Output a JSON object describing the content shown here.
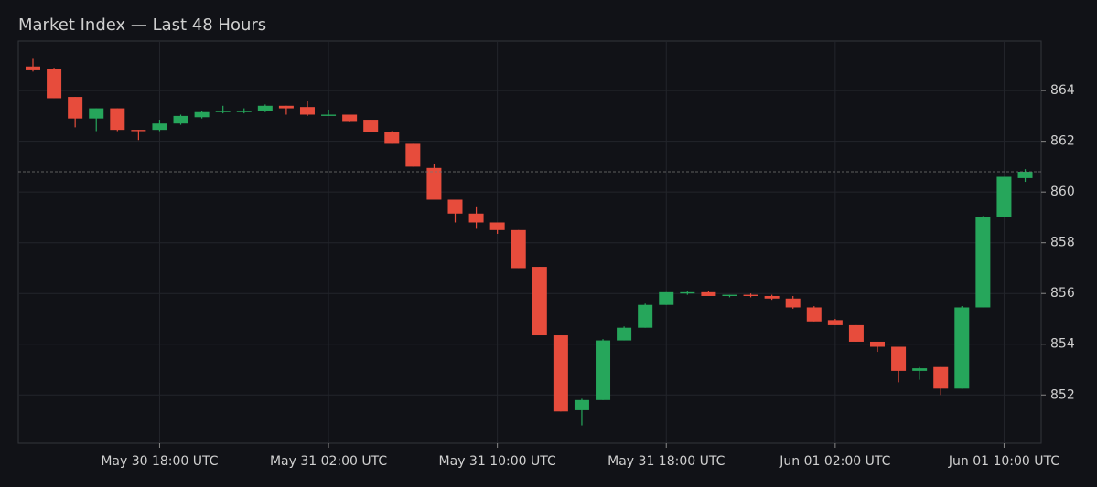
{
  "chart_data": {
    "type": "candlestick",
    "title": "Market Index — Last 48 Hours",
    "x": [
      "May 30 12:00",
      "May 30 13:00",
      "May 30 14:00",
      "May 30 15:00",
      "May 30 16:00",
      "May 30 17:00",
      "May 30 18:00",
      "May 30 19:00",
      "May 30 20:00",
      "May 30 21:00",
      "May 30 22:00",
      "May 30 23:00",
      "May 31 00:00",
      "May 31 01:00",
      "May 31 02:00",
      "May 31 03:00",
      "May 31 04:00",
      "May 31 05:00",
      "May 31 06:00",
      "May 31 07:00",
      "May 31 08:00",
      "May 31 09:00",
      "May 31 10:00",
      "May 31 11:00",
      "May 31 12:00",
      "May 31 13:00",
      "May 31 14:00",
      "May 31 15:00",
      "May 31 16:00",
      "May 31 17:00",
      "May 31 18:00",
      "May 31 19:00",
      "May 31 20:00",
      "May 31 21:00",
      "May 31 22:00",
      "May 31 23:00",
      "Jun 01 00:00",
      "Jun 01 01:00",
      "Jun 01 02:00",
      "Jun 01 03:00",
      "Jun 01 04:00",
      "Jun 01 05:00",
      "Jun 01 06:00",
      "Jun 01 07:00",
      "Jun 01 08:00",
      "Jun 01 09:00",
      "Jun 01 10:00",
      "Jun 01 11:00"
    ],
    "open": [
      864.95,
      864.85,
      863.75,
      862.9,
      863.3,
      862.45,
      862.45,
      862.7,
      862.95,
      863.15,
      863.15,
      863.2,
      863.4,
      863.35,
      863.0,
      863.05,
      862.85,
      862.35,
      861.9,
      860.95,
      859.7,
      859.15,
      858.8,
      858.5,
      857.05,
      854.35,
      851.4,
      851.8,
      854.15,
      854.65,
      855.55,
      856.0,
      856.05,
      855.9,
      855.95,
      855.9,
      855.8,
      855.45,
      854.95,
      854.75,
      854.1,
      853.9,
      852.95,
      853.1,
      852.25,
      855.45,
      859.0,
      860.55
    ],
    "high": [
      865.25,
      864.9,
      863.75,
      863.3,
      863.3,
      862.45,
      862.85,
      863.05,
      863.2,
      863.4,
      863.3,
      863.45,
      863.4,
      863.6,
      863.25,
      863.05,
      862.85,
      862.4,
      861.9,
      861.1,
      859.7,
      859.4,
      858.8,
      858.5,
      857.05,
      854.35,
      851.85,
      854.2,
      854.7,
      855.6,
      856.05,
      856.1,
      856.1,
      855.95,
      856.0,
      855.95,
      855.9,
      855.5,
      855.0,
      854.75,
      854.1,
      853.9,
      853.1,
      853.1,
      855.5,
      859.05,
      860.6,
      860.9
    ],
    "low": [
      864.75,
      863.7,
      862.55,
      862.4,
      862.4,
      862.05,
      862.4,
      862.65,
      862.9,
      863.1,
      863.1,
      863.15,
      863.05,
      863.0,
      863.0,
      862.75,
      862.35,
      861.9,
      861.0,
      859.7,
      858.8,
      858.55,
      858.35,
      857.0,
      854.35,
      851.35,
      850.8,
      851.8,
      854.15,
      854.65,
      855.55,
      855.95,
      855.9,
      855.85,
      855.85,
      855.75,
      855.4,
      854.9,
      854.75,
      854.1,
      853.7,
      852.5,
      852.6,
      852.0,
      852.25,
      855.45,
      859.0,
      860.4
    ],
    "close": [
      864.8,
      863.7,
      862.9,
      863.3,
      862.45,
      862.4,
      862.7,
      863.0,
      863.15,
      863.2,
      863.2,
      863.4,
      863.3,
      863.05,
      863.05,
      862.8,
      862.35,
      861.9,
      861.0,
      859.7,
      859.15,
      858.8,
      858.5,
      857.0,
      854.35,
      851.35,
      851.8,
      854.15,
      854.65,
      855.55,
      856.05,
      856.05,
      855.9,
      855.95,
      855.9,
      855.8,
      855.45,
      854.9,
      854.75,
      854.1,
      853.9,
      852.95,
      853.05,
      852.25,
      855.45,
      859.0,
      860.6,
      860.8
    ],
    "up_color": "#26a65b",
    "down_color": "#e74c3c",
    "ylim": [
      850.1,
      865.95
    ],
    "yticks": [
      852,
      854,
      856,
      858,
      860,
      862,
      864
    ],
    "xticks": [
      {
        "value": "May 30 18:00",
        "label": "May 30 18:00 UTC"
      },
      {
        "value": "May 31 02:00",
        "label": "May 31 02:00 UTC"
      },
      {
        "value": "May 31 10:00",
        "label": "May 31 10:00 UTC"
      },
      {
        "value": "May 31 18:00",
        "label": "May 31 18:00 UTC"
      },
      {
        "value": "Jun 01 02:00",
        "label": "Jun 01 02:00 UTC"
      },
      {
        "value": "Jun 01 10:00",
        "label": "Jun 01 10:00 UTC"
      }
    ],
    "grid": true
  }
}
